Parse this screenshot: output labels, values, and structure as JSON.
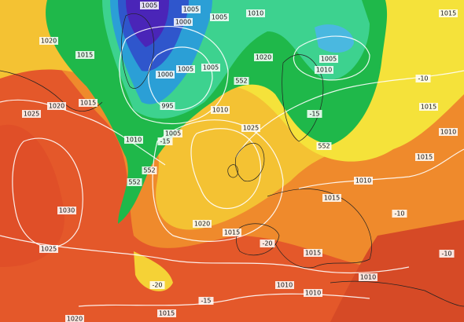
{
  "labels": [
    "1005",
    "1005",
    "1000",
    "1005",
    "1010",
    "1015",
    "1020",
    "1015",
    "1020",
    "1000",
    "1005",
    "1005",
    "1005",
    "1010",
    "995",
    "1010",
    "1020",
    "1015",
    "1025",
    "1010",
    "1005",
    "1025",
    "1010",
    "1015",
    "1030",
    "1020",
    "1015",
    "1025",
    "1015",
    "1010",
    "1010",
    "1010",
    "1015",
    "1020",
    "1010",
    "1015",
    "1015",
    "552",
    "552",
    "552",
    "552",
    "-20",
    "-10",
    "-20",
    "-15",
    "-15",
    "-10",
    "-10",
    "-15"
  ]
}
